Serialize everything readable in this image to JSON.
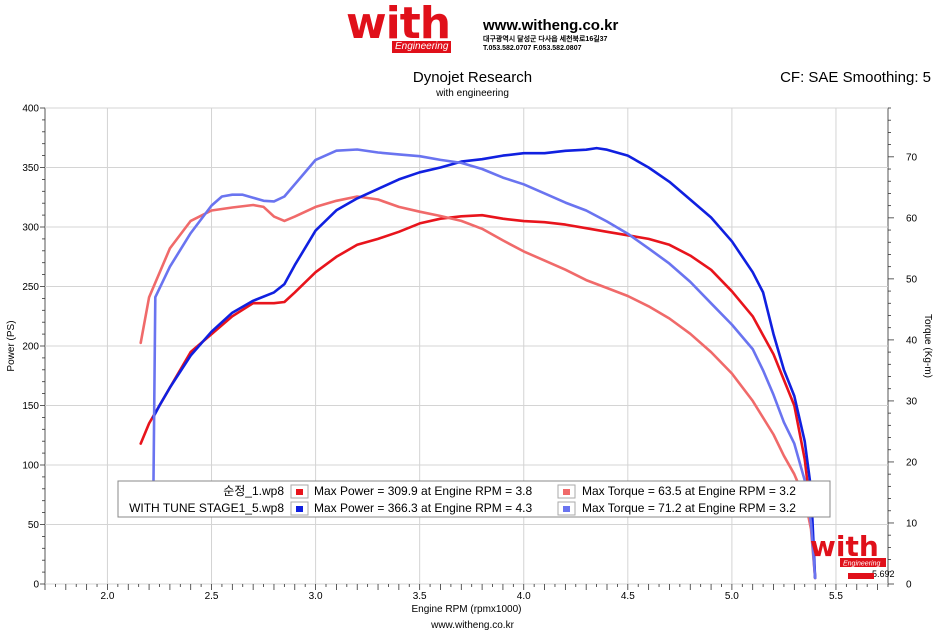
{
  "header": {
    "logo_text": "with",
    "logo_sub": "Engineering",
    "website": "www.witheng.co.kr",
    "address": "대구광역시 달성군 다사읍 세천북로16길37",
    "phone": "T.053.582.0707 F.053.582.0807"
  },
  "title": "Dynojet Research",
  "subtitle": "with engineering",
  "cf_text": "CF: SAE Smoothing: 5",
  "footer": "www.witheng.co.kr",
  "watermark": {
    "text": "with",
    "sub": "Engineering",
    "value": "5.692"
  },
  "colors": {
    "red_power": "#e8141c",
    "red_torque": "#f06a6a",
    "blue_power": "#1020e0",
    "blue_torque": "#6a74f0",
    "grid": "#d4d4d4",
    "accent": "#e0101a"
  },
  "chart_data": {
    "type": "line",
    "title": "Dynojet Research",
    "subtitle": "with engineering",
    "xlabel": "Engine RPM (rpmx1000)",
    "ylabel_left": "Power (PS)",
    "ylabel_right": "Torque (Kg-m)",
    "xlim": [
      1.7,
      5.75
    ],
    "ylim_left": [
      0,
      400
    ],
    "ylim_right": [
      0,
      78
    ],
    "x_ticks": [
      "2.0",
      "2.5",
      "3.0",
      "3.5",
      "4.0",
      "4.5",
      "5.0",
      "5.5"
    ],
    "y_ticks_left": [
      0,
      50,
      100,
      150,
      200,
      250,
      300,
      350,
      400
    ],
    "y_ticks_right": [
      0,
      10,
      20,
      30,
      40,
      50,
      60,
      70
    ],
    "grid": true,
    "legend": [
      {
        "file": "순정_1.wp8",
        "power": "Max Power = 309.9 at Engine RPM = 3.8",
        "torque": "Max Torque = 63.5 at Engine RPM = 3.2"
      },
      {
        "file": "WITH TUNE STAGE1_5.wp8",
        "power": "Max Power = 366.3 at Engine RPM = 4.3",
        "torque": "Max Torque = 71.2 at Engine RPM = 3.2"
      }
    ],
    "series": [
      {
        "name": "순정_1.wp8",
        "axis": "left",
        "color": "#e8141c",
        "x": [
          2.16,
          2.2,
          2.3,
          2.4,
          2.5,
          2.6,
          2.7,
          2.8,
          2.85,
          2.9,
          3.0,
          3.1,
          3.2,
          3.3,
          3.4,
          3.5,
          3.6,
          3.7,
          3.8,
          3.9,
          4.0,
          4.1,
          4.2,
          4.3,
          4.4,
          4.5,
          4.6,
          4.7,
          4.8,
          4.9,
          5.0,
          5.1,
          5.2,
          5.3,
          5.35,
          5.38,
          5.4
        ],
        "y": [
          118,
          135,
          165,
          195,
          210,
          225,
          236,
          236,
          237,
          245,
          262,
          275,
          285,
          290,
          296,
          303,
          307,
          309,
          309.9,
          307,
          305,
          304,
          302,
          299,
          296,
          293,
          290,
          285,
          276,
          264,
          246,
          225,
          193,
          150,
          105,
          60,
          5
        ]
      },
      {
        "name": "순정_1.wp8",
        "axis": "right",
        "color": "#f06a6a",
        "x": [
          2.16,
          2.2,
          2.3,
          2.4,
          2.5,
          2.6,
          2.7,
          2.75,
          2.8,
          2.85,
          2.9,
          3.0,
          3.1,
          3.2,
          3.3,
          3.4,
          3.5,
          3.6,
          3.7,
          3.8,
          3.9,
          4.0,
          4.1,
          4.2,
          4.3,
          4.4,
          4.5,
          4.6,
          4.7,
          4.8,
          4.9,
          5.0,
          5.1,
          5.2,
          5.25,
          5.3,
          5.35,
          5.38,
          5.4
        ],
        "y": [
          39.5,
          47,
          55,
          59.5,
          61.2,
          61.7,
          62.1,
          61.8,
          60.2,
          59.5,
          60.2,
          61.8,
          62.8,
          63.5,
          63,
          61.8,
          61,
          60.3,
          59.5,
          58.2,
          56.3,
          54.5,
          53,
          51.5,
          49.8,
          48.5,
          47.2,
          45.5,
          43.5,
          41,
          38,
          34.5,
          30,
          24.5,
          21,
          18,
          14,
          9,
          1
        ]
      },
      {
        "name": "WITH TUNE STAGE1_5.wp8",
        "axis": "left",
        "color": "#1020e0",
        "x": [
          2.22,
          2.25,
          2.3,
          2.4,
          2.5,
          2.6,
          2.7,
          2.8,
          2.85,
          2.9,
          3.0,
          3.1,
          3.2,
          3.3,
          3.4,
          3.5,
          3.6,
          3.7,
          3.8,
          3.9,
          4.0,
          4.1,
          4.2,
          4.3,
          4.35,
          4.4,
          4.5,
          4.6,
          4.7,
          4.8,
          4.9,
          5.0,
          5.1,
          5.15,
          5.2,
          5.25,
          5.3,
          5.35,
          5.38,
          5.4
        ],
        "y": [
          140,
          150,
          165,
          192,
          212,
          228,
          238,
          245,
          252,
          268,
          297,
          314,
          324,
          332,
          340,
          346,
          350,
          355,
          357,
          360,
          362,
          362,
          364,
          365,
          366.3,
          365,
          360,
          350,
          338,
          323,
          308,
          288,
          262,
          245,
          210,
          180,
          158,
          120,
          80,
          5
        ]
      },
      {
        "name": "WITH TUNE STAGE1_5.wp8",
        "axis": "right",
        "color": "#6a74f0",
        "x": [
          2.22,
          2.23,
          2.3,
          2.4,
          2.5,
          2.55,
          2.6,
          2.65,
          2.7,
          2.75,
          2.8,
          2.85,
          2.9,
          2.95,
          3.0,
          3.1,
          3.2,
          3.3,
          3.4,
          3.5,
          3.6,
          3.7,
          3.8,
          3.9,
          4.0,
          4.1,
          4.2,
          4.3,
          4.4,
          4.5,
          4.6,
          4.7,
          4.8,
          4.9,
          5.0,
          5.1,
          5.15,
          5.2,
          5.25,
          5.3,
          5.35,
          5.38,
          5.4
        ],
        "y": [
          12,
          47,
          52,
          57.5,
          62,
          63.5,
          63.8,
          63.8,
          63.3,
          62.8,
          62.7,
          63.5,
          65.5,
          67.5,
          69.5,
          71,
          71.2,
          70.7,
          70.4,
          70.1,
          69.5,
          69,
          68,
          66.6,
          65.5,
          64,
          62.5,
          61.2,
          59.4,
          57.4,
          55,
          52.5,
          49.5,
          46,
          42.5,
          38.5,
          35,
          31,
          26.5,
          23,
          17,
          10,
          1
        ]
      }
    ]
  }
}
